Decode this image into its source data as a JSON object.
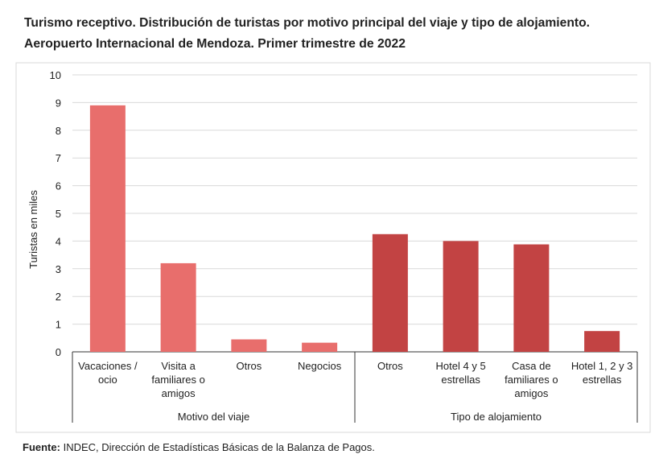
{
  "chart_data": {
    "type": "bar",
    "title": "Turismo receptivo. Distribución de turistas por motivo principal del viaje y tipo de alojamiento.",
    "subtitle": "Aeropuerto Internacional de Mendoza. Primer trimestre de 2022",
    "ylabel": "Turistas en miles",
    "ylim": [
      0,
      10
    ],
    "yticks": [
      0,
      1,
      2,
      3,
      4,
      5,
      6,
      7,
      8,
      9,
      10
    ],
    "grid": true,
    "groups": [
      {
        "name": "Motivo del viaje",
        "color": "#e86e6c",
        "categories": [
          "Vacaciones / ocio",
          "Visita a familiares o amigos",
          "Otros",
          "Negocios"
        ],
        "values": [
          8.9,
          3.2,
          0.45,
          0.33
        ]
      },
      {
        "name": "Tipo de alojamiento",
        "color": "#c24343",
        "categories": [
          "Otros",
          "Hotel 4 y 5 estrellas",
          "Casa de familiares o amigos",
          "Hotel 1, 2 y 3 estrellas"
        ],
        "values": [
          4.25,
          4.0,
          3.88,
          0.75
        ]
      }
    ],
    "source_label": "Fuente:",
    "source": "INDEC, Dirección de Estadísticas Básicas de la Balanza de Pagos."
  }
}
